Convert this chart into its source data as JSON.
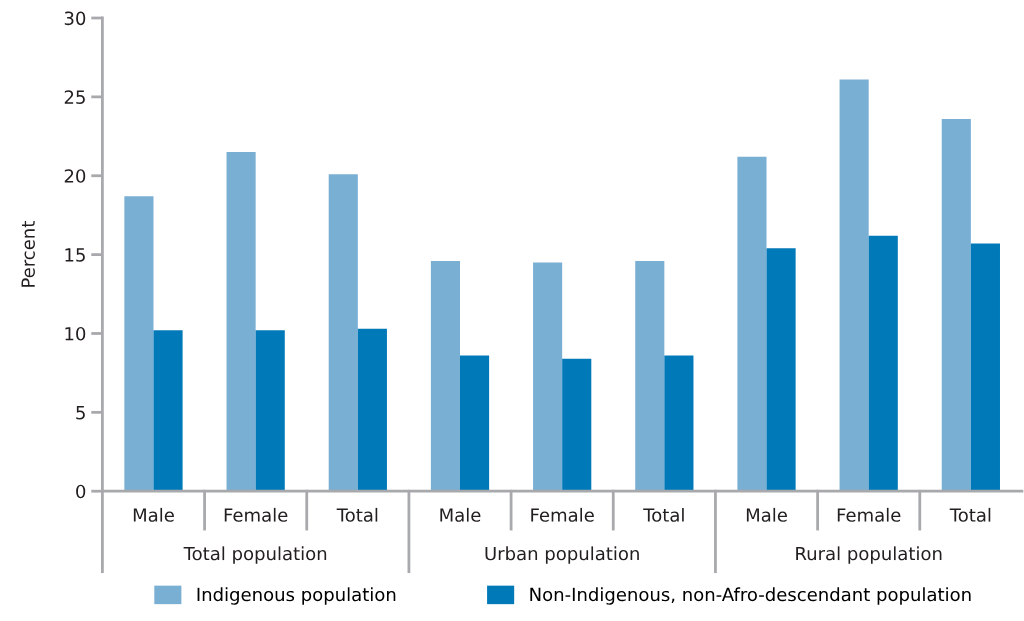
{
  "chart_data": {
    "type": "bar",
    "ylabel": "Percent",
    "categories": [
      "Male",
      "Female",
      "Total",
      "Male",
      "Female",
      "Total",
      "Male",
      "Female",
      "Total"
    ],
    "series": [
      {
        "name": "Indigenous population",
        "color": "#7aafd4",
        "values": [
          18.7,
          21.5,
          20.1,
          14.6,
          14.5,
          14.6,
          21.2,
          26.1,
          23.6
        ]
      },
      {
        "name": "Non-Indigenous, non-Afro-descendant population",
        "color": "#0079b8",
        "values": [
          10.2,
          10.2,
          10.3,
          8.6,
          8.4,
          8.6,
          15.4,
          16.2,
          15.7
        ]
      }
    ],
    "annotations": [
      "Total population",
      "Urban population",
      "Rural population"
    ],
    "ylim": [
      0,
      30
    ],
    "yticks": [
      0,
      5,
      10,
      15,
      20,
      25,
      30
    ],
    "grid": false,
    "legend": "bottom"
  }
}
